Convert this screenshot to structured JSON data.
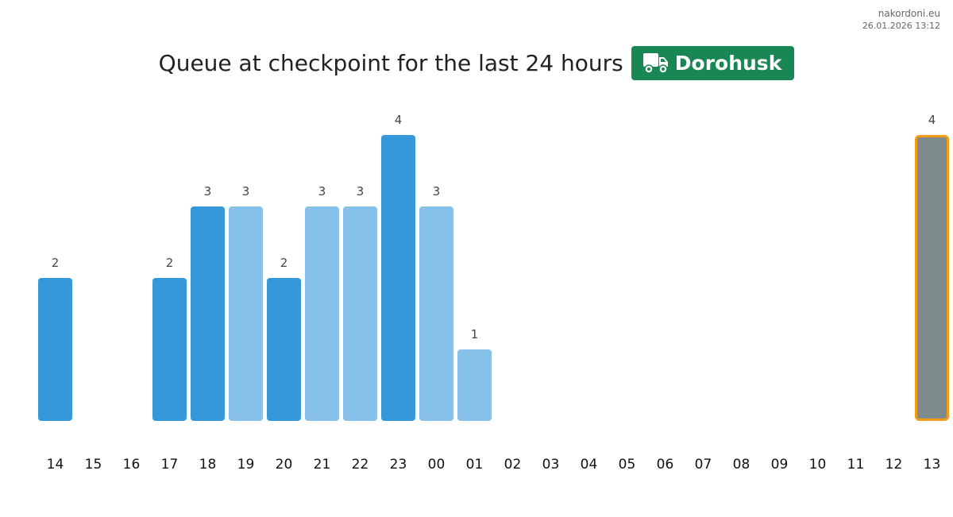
{
  "source": {
    "site": "nakordoni.eu",
    "timestamp": "26.01.2026 13:12"
  },
  "header": {
    "title": "Queue at checkpoint for the last 24 hours",
    "checkpoint": "Dorohusk",
    "checkpoint_icon": "truck-icon",
    "badge_color": "#198754"
  },
  "chart_data": {
    "type": "bar",
    "title": "Queue at checkpoint for the last 24 hours",
    "xlabel": "",
    "ylabel": "",
    "ylim": [
      0,
      4
    ],
    "grid": false,
    "categories": [
      "14",
      "15",
      "16",
      "17",
      "18",
      "19",
      "20",
      "21",
      "22",
      "23",
      "00",
      "01",
      "02",
      "03",
      "04",
      "05",
      "06",
      "07",
      "08",
      "09",
      "10",
      "11",
      "12",
      "13"
    ],
    "values": [
      2,
      0,
      0,
      2,
      3,
      3,
      2,
      3,
      3,
      4,
      3,
      1,
      0,
      0,
      0,
      0,
      0,
      0,
      0,
      0,
      0,
      0,
      0,
      4
    ],
    "bar_shades": [
      "dark",
      "light",
      "light",
      "dark",
      "dark",
      "light",
      "dark",
      "light",
      "light",
      "dark",
      "light",
      "light",
      "light",
      "light",
      "light",
      "light",
      "light",
      "light",
      "light",
      "light",
      "light",
      "light",
      "light",
      "current"
    ],
    "colors": {
      "dark": "#3498db",
      "light": "#85c1e9",
      "current": "#7f8c8d",
      "current_outline": "#f39c12"
    }
  }
}
